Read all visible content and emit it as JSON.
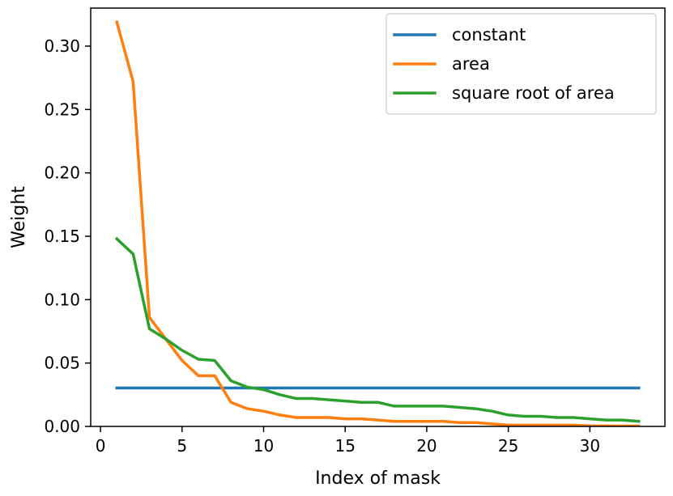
{
  "chart_data": {
    "type": "line",
    "title": "",
    "xlabel": "Index of mask",
    "ylabel": "Weight",
    "xlim": [
      -0.6,
      34.6
    ],
    "ylim": [
      0.0,
      0.33
    ],
    "xticks": [
      0,
      5,
      10,
      15,
      20,
      25,
      30
    ],
    "xtick_labels": [
      "0",
      "5",
      "10",
      "15",
      "20",
      "25",
      "30"
    ],
    "yticks": [
      0.0,
      0.05,
      0.1,
      0.15,
      0.2,
      0.25,
      0.3
    ],
    "ytick_labels": [
      "0.00",
      "0.05",
      "0.10",
      "0.15",
      "0.20",
      "0.25",
      "0.30"
    ],
    "grid": false,
    "legend_position": "top-right",
    "x": [
      1,
      2,
      3,
      4,
      5,
      6,
      7,
      8,
      9,
      10,
      11,
      12,
      13,
      14,
      15,
      16,
      17,
      18,
      19,
      20,
      21,
      22,
      23,
      24,
      25,
      26,
      27,
      28,
      29,
      30,
      31,
      32,
      33
    ],
    "series": [
      {
        "name": "constant",
        "color": "#1f77b4",
        "values": [
          0.0303,
          0.0303,
          0.0303,
          0.0303,
          0.0303,
          0.0303,
          0.0303,
          0.0303,
          0.0303,
          0.0303,
          0.0303,
          0.0303,
          0.0303,
          0.0303,
          0.0303,
          0.0303,
          0.0303,
          0.0303,
          0.0303,
          0.0303,
          0.0303,
          0.0303,
          0.0303,
          0.0303,
          0.0303,
          0.0303,
          0.0303,
          0.0303,
          0.0303,
          0.0303,
          0.0303,
          0.0303,
          0.0303
        ]
      },
      {
        "name": "area",
        "color": "#ff7f0e",
        "values": [
          0.319,
          0.272,
          0.086,
          0.069,
          0.052,
          0.04,
          0.04,
          0.019,
          0.014,
          0.012,
          0.009,
          0.007,
          0.007,
          0.007,
          0.006,
          0.006,
          0.005,
          0.004,
          0.004,
          0.004,
          0.004,
          0.003,
          0.003,
          0.002,
          0.001,
          0.001,
          0.001,
          0.001,
          0.001,
          0.0005,
          0.0004,
          0.0003,
          0.0003
        ]
      },
      {
        "name": "square root of area",
        "color": "#2ca02c",
        "values": [
          0.148,
          0.136,
          0.077,
          0.069,
          0.06,
          0.053,
          0.052,
          0.036,
          0.031,
          0.029,
          0.025,
          0.022,
          0.022,
          0.021,
          0.02,
          0.019,
          0.019,
          0.016,
          0.016,
          0.016,
          0.016,
          0.015,
          0.014,
          0.012,
          0.009,
          0.008,
          0.008,
          0.007,
          0.007,
          0.006,
          0.005,
          0.005,
          0.004
        ]
      }
    ]
  }
}
